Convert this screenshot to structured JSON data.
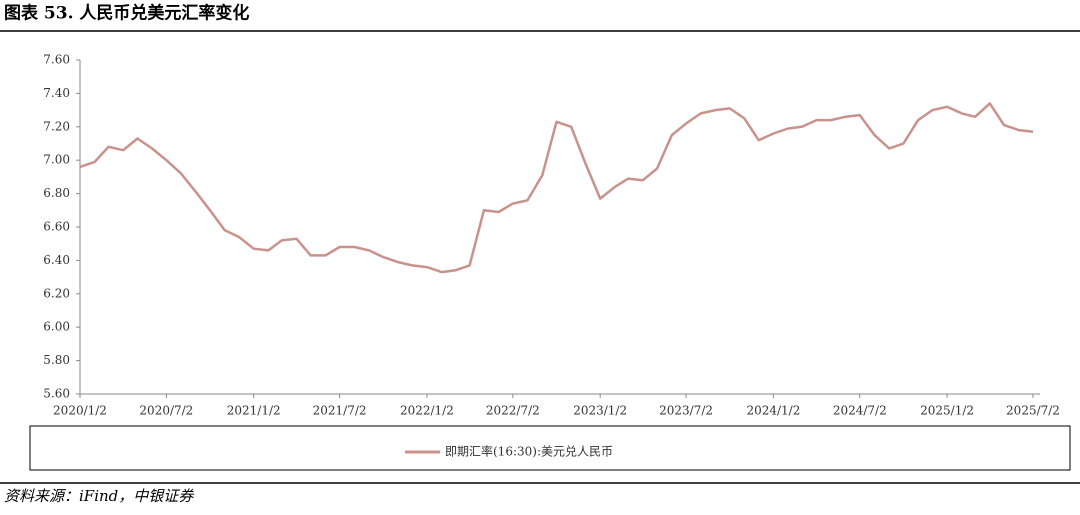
{
  "chart_data": {
    "type": "line",
    "title": "图表 53. 人民币兑美元汇率变化",
    "source": "资料来源：iFind，中银证券",
    "x": [
      "2020/1/2",
      "2020/2/2",
      "2020/3/2",
      "2020/4/2",
      "2020/5/2",
      "2020/6/2",
      "2020/7/2",
      "2020/8/2",
      "2020/9/2",
      "2020/10/2",
      "2020/11/2",
      "2020/12/2",
      "2021/1/2",
      "2021/2/2",
      "2021/3/2",
      "2021/4/2",
      "2021/5/2",
      "2021/6/2",
      "2021/7/2",
      "2021/8/2",
      "2021/9/2",
      "2021/10/2",
      "2021/11/2",
      "2021/12/2",
      "2022/1/2",
      "2022/2/2",
      "2022/3/2",
      "2022/4/2",
      "2022/5/2",
      "2022/6/2",
      "2022/7/2",
      "2022/8/2",
      "2022/9/2",
      "2022/10/2",
      "2022/11/2",
      "2022/12/2",
      "2023/1/2",
      "2023/2/2",
      "2023/3/2",
      "2023/4/2",
      "2023/5/2",
      "2023/6/2",
      "2023/7/2",
      "2023/8/2",
      "2023/9/2",
      "2023/10/2",
      "2023/11/2",
      "2023/12/2",
      "2024/1/2",
      "2024/2/2",
      "2024/3/2",
      "2024/4/2",
      "2024/5/2",
      "2024/6/2",
      "2024/7/2",
      "2024/8/2",
      "2024/9/2",
      "2024/10/2",
      "2024/11/2",
      "2024/12/2",
      "2025/1/2",
      "2025/2/2",
      "2025/3/2",
      "2025/4/2",
      "2025/5/2",
      "2025/6/2",
      "2025/7/2"
    ],
    "series": [
      {
        "name": "即期汇率(16:30):美元兑人民币",
        "color": "#c9928c",
        "values": [
          6.96,
          6.99,
          7.08,
          7.06,
          7.13,
          7.07,
          7.0,
          6.92,
          6.81,
          6.7,
          6.58,
          6.54,
          6.47,
          6.46,
          6.52,
          6.53,
          6.43,
          6.43,
          6.48,
          6.48,
          6.46,
          6.42,
          6.39,
          6.37,
          6.36,
          6.33,
          6.34,
          6.37,
          6.7,
          6.69,
          6.74,
          6.76,
          6.91,
          7.23,
          7.2,
          6.98,
          6.77,
          6.84,
          6.89,
          6.88,
          6.95,
          7.15,
          7.22,
          7.28,
          7.3,
          7.31,
          7.25,
          7.12,
          7.16,
          7.19,
          7.2,
          7.24,
          7.24,
          7.26,
          7.27,
          7.15,
          7.07,
          7.1,
          7.24,
          7.3,
          7.32,
          7.28,
          7.26,
          7.34,
          7.21,
          7.18,
          7.17
        ]
      }
    ],
    "xlim": [
      "2020/1/2",
      "2025/7/2"
    ],
    "xticks": [
      "2020/1/2",
      "2020/7/2",
      "2021/1/2",
      "2021/7/2",
      "2022/1/2",
      "2022/7/2",
      "2023/1/2",
      "2023/7/2",
      "2024/1/2",
      "2024/7/2",
      "2025/1/2",
      "2025/7/2"
    ],
    "ylim": [
      5.6,
      7.6
    ],
    "yticks": [
      {
        "value": 5.6,
        "label": "5.60"
      },
      {
        "value": 5.8,
        "label": "5.80"
      },
      {
        "value": 6,
        "label": "6.00"
      },
      {
        "value": 6.2,
        "label": "6.20"
      },
      {
        "value": 6.4,
        "label": "6.40"
      },
      {
        "value": 6.6,
        "label": "6.60"
      },
      {
        "value": 6.8,
        "label": "6.80"
      },
      {
        "value": 7,
        "label": "7.00"
      },
      {
        "value": 7.2,
        "label": "7.20"
      },
      {
        "value": 7.4,
        "label": "7.40"
      },
      {
        "value": 7.6,
        "label": "7.60"
      }
    ]
  }
}
